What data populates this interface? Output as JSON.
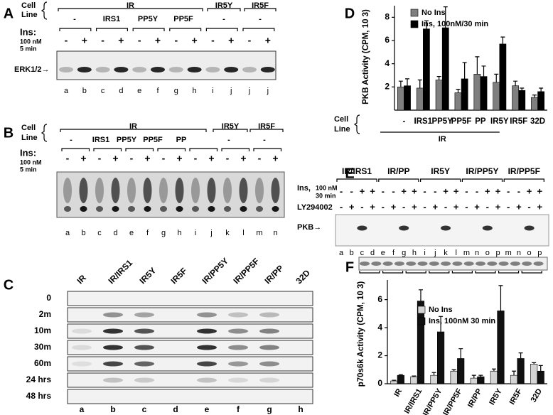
{
  "panel_a": {
    "label": "A",
    "cell_line": [
      "Cell",
      "Line"
    ],
    "groups": [
      "IR",
      "IR5Y",
      "IR5F"
    ],
    "lines": [
      "-",
      "IRS1",
      "PP5Y",
      "PP5F",
      "-",
      "-"
    ],
    "ins": "Ins:",
    "dose": [
      "100 nM",
      "5 min"
    ],
    "signs": [
      "-",
      "+",
      "-",
      "+",
      "-",
      "+",
      "-",
      "+",
      "-",
      "+",
      "-",
      "+"
    ],
    "band": "ERK1/2→",
    "lanes": [
      "a",
      "b",
      "c",
      "d",
      "e",
      "f",
      "g",
      "h",
      "i",
      "j",
      "j",
      "j"
    ]
  },
  "panel_b": {
    "label": "B",
    "cell_line": [
      "Cell",
      "Line"
    ],
    "groups": [
      "IR",
      "IR5Y",
      "IR5F"
    ],
    "lines": [
      "-",
      "IRS1",
      "PP5Y",
      "PP5F",
      "PP",
      "-",
      "-"
    ],
    "ins": "Ins:",
    "dose": [
      "100 nM",
      "5 min"
    ],
    "signs": [
      "-",
      "+",
      "-",
      "+",
      "-",
      "+",
      "-",
      "+",
      "-",
      "+",
      "-",
      "+",
      "-",
      "+"
    ],
    "lanes": [
      "a",
      "b",
      "c",
      "d",
      "e",
      "f",
      "g",
      "h",
      "i",
      "j",
      "k",
      "l",
      "m",
      "n"
    ]
  },
  "panel_c": {
    "label": "C",
    "columns": [
      "IR",
      "IR/IRS1",
      "IR5Y",
      "IR5F",
      "IR/PP5Y",
      "IR/PP5F",
      "IR/PP",
      "32D"
    ],
    "rows": [
      "0",
      "2m",
      "10m",
      "30m",
      "60m",
      "24 hrs",
      "48 hrs"
    ],
    "lanes": [
      "a",
      "b",
      "c",
      "d",
      "e",
      "f",
      "g",
      "h"
    ]
  },
  "panel_e": {
    "label": "E",
    "groups": [
      "IR/IRS1",
      "IR/PP",
      "IR5Y",
      "IR/PP5Y",
      "IR/PP5F"
    ],
    "ins": [
      "Ins,",
      "100 nM",
      "30 min"
    ],
    "inhibitor": "LY294002",
    "band": "PKB→",
    "ins_signs": [
      "-",
      "-",
      "+",
      "+",
      "-",
      "-",
      "+",
      "+",
      "-",
      "-",
      "+",
      "+",
      "-",
      "-",
      "+",
      "+",
      "-",
      "-",
      "+",
      "+"
    ],
    "ly_signs": [
      "-",
      "+",
      "-",
      "+",
      "-",
      "+",
      "-",
      "+",
      "-",
      "+",
      "-",
      "+",
      "-",
      "+",
      "-",
      "+",
      "-",
      "+",
      "-",
      "+"
    ],
    "lanes": [
      "a",
      "b",
      "c",
      "d",
      "e",
      "f",
      "g",
      "h",
      "i",
      "j",
      "k",
      "l",
      "m",
      "n",
      "o",
      "p",
      "m",
      "n",
      "o",
      "p"
    ]
  },
  "chart_data": [
    {
      "type": "bar",
      "label": "D",
      "ylabel": "PKB Activity (CPM, 10 3)",
      "cell_line": [
        "Cell",
        "Line"
      ],
      "group": "IR",
      "categories": [
        "-",
        "IRS1",
        "PP5Y",
        "PP5F",
        "PP",
        "IR5Y",
        "IR5F",
        "32D"
      ],
      "series": [
        {
          "name": "No Ins",
          "color": "#7f7f7f",
          "values": [
            2.0,
            1.9,
            2.6,
            1.5,
            3.1,
            2.4,
            2.1,
            1.1
          ],
          "errors": [
            0.5,
            0.7,
            0.3,
            0.3,
            1.5,
            0.7,
            0.4,
            0.2
          ]
        },
        {
          "name": "Ins, 100nM/30 min",
          "color": "#000000",
          "values": [
            2.1,
            7.0,
            7.1,
            2.7,
            2.9,
            5.7,
            1.7,
            1.6
          ],
          "errors": [
            0.6,
            0.7,
            1.8,
            1.4,
            0.9,
            0.6,
            0.2,
            0.3
          ]
        }
      ],
      "ylim": [
        0,
        9
      ],
      "yticks": [
        2,
        4,
        6,
        8
      ],
      "legend": "top-left"
    },
    {
      "type": "bar",
      "label": "F",
      "ylabel": "p70s6k Activity (CPM, 10 3)",
      "categories": [
        "IR",
        "IR/IRS1",
        "IR/PP5Y",
        "IR/PP5F",
        "IR/PP",
        "IR5Y",
        "IR5F",
        "32D"
      ],
      "series": [
        {
          "name": "No Ins",
          "color": "#d4d4d4",
          "values": [
            0.2,
            0.5,
            0.6,
            0.9,
            0.4,
            0.9,
            0.6,
            1.4
          ],
          "errors": [
            0.05,
            0.05,
            0.2,
            0.1,
            0.2,
            0.15,
            0.3,
            0.1
          ]
        },
        {
          "name": "Ins, 100nM 30 min",
          "color": "#111111",
          "values": [
            0.6,
            5.9,
            3.7,
            1.8,
            0.5,
            5.2,
            1.8,
            0.9
          ],
          "errors": [
            0.05,
            0.8,
            1.1,
            0.7,
            0.1,
            1.8,
            0.4,
            0.4
          ]
        }
      ],
      "ylim": [
        0,
        7.4
      ],
      "yticks": [
        0,
        2,
        4,
        6
      ],
      "legend": "center"
    }
  ]
}
